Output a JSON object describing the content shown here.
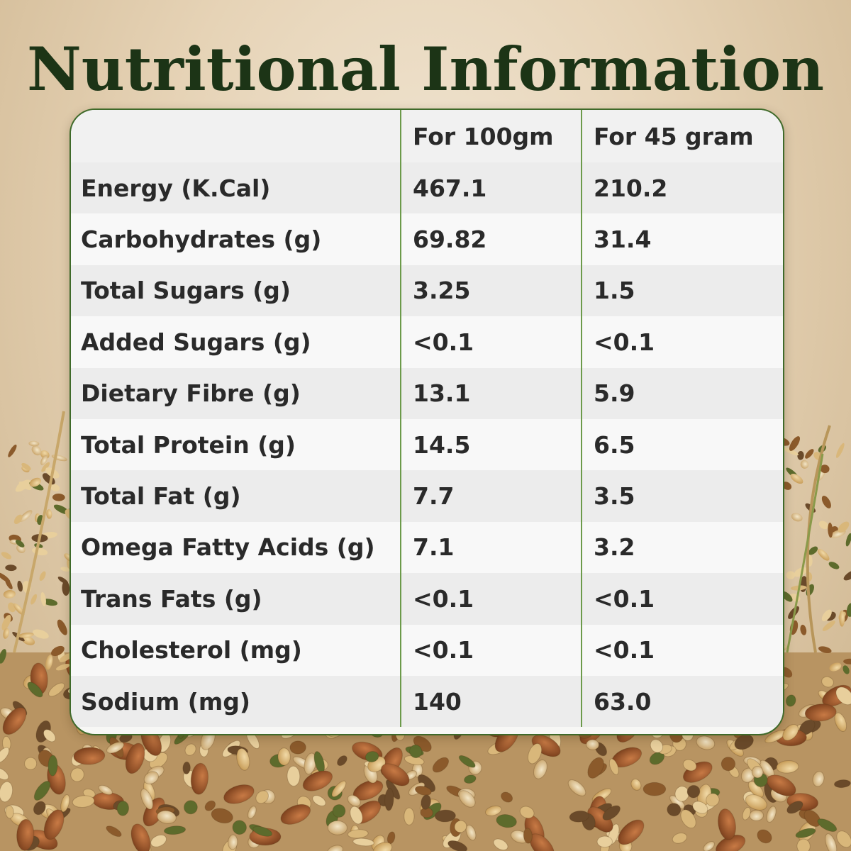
{
  "title": "Nutritional Information",
  "table": {
    "headers": [
      "",
      "For 100gm",
      "For 45 gram"
    ],
    "rows": [
      [
        "Energy (K.Cal)",
        "467.1",
        "210.2"
      ],
      [
        "Carbohydrates (g)",
        "69.82",
        "31.4"
      ],
      [
        "Total Sugars (g)",
        "3.25",
        "1.5"
      ],
      [
        "Added Sugars (g)",
        "<0.1",
        "<0.1"
      ],
      [
        "Dietary Fibre (g)",
        "13.1",
        "5.9"
      ],
      [
        "Total Protein (g)",
        "14.5",
        "6.5"
      ],
      [
        "Total Fat (g)",
        "7.7",
        "3.5"
      ],
      [
        "Omega Fatty Acids (g)",
        "7.1",
        "3.2"
      ],
      [
        "Trans Fats (g)",
        "<0.1",
        "<0.1"
      ],
      [
        "Cholesterol (mg)",
        "<0.1",
        "<0.1"
      ],
      [
        "Sodium (mg)",
        "140",
        "63.0"
      ]
    ]
  },
  "colors": {
    "title": "#1c3416",
    "border": "#3f6a2a",
    "column_divider": "#6c9a4a"
  }
}
